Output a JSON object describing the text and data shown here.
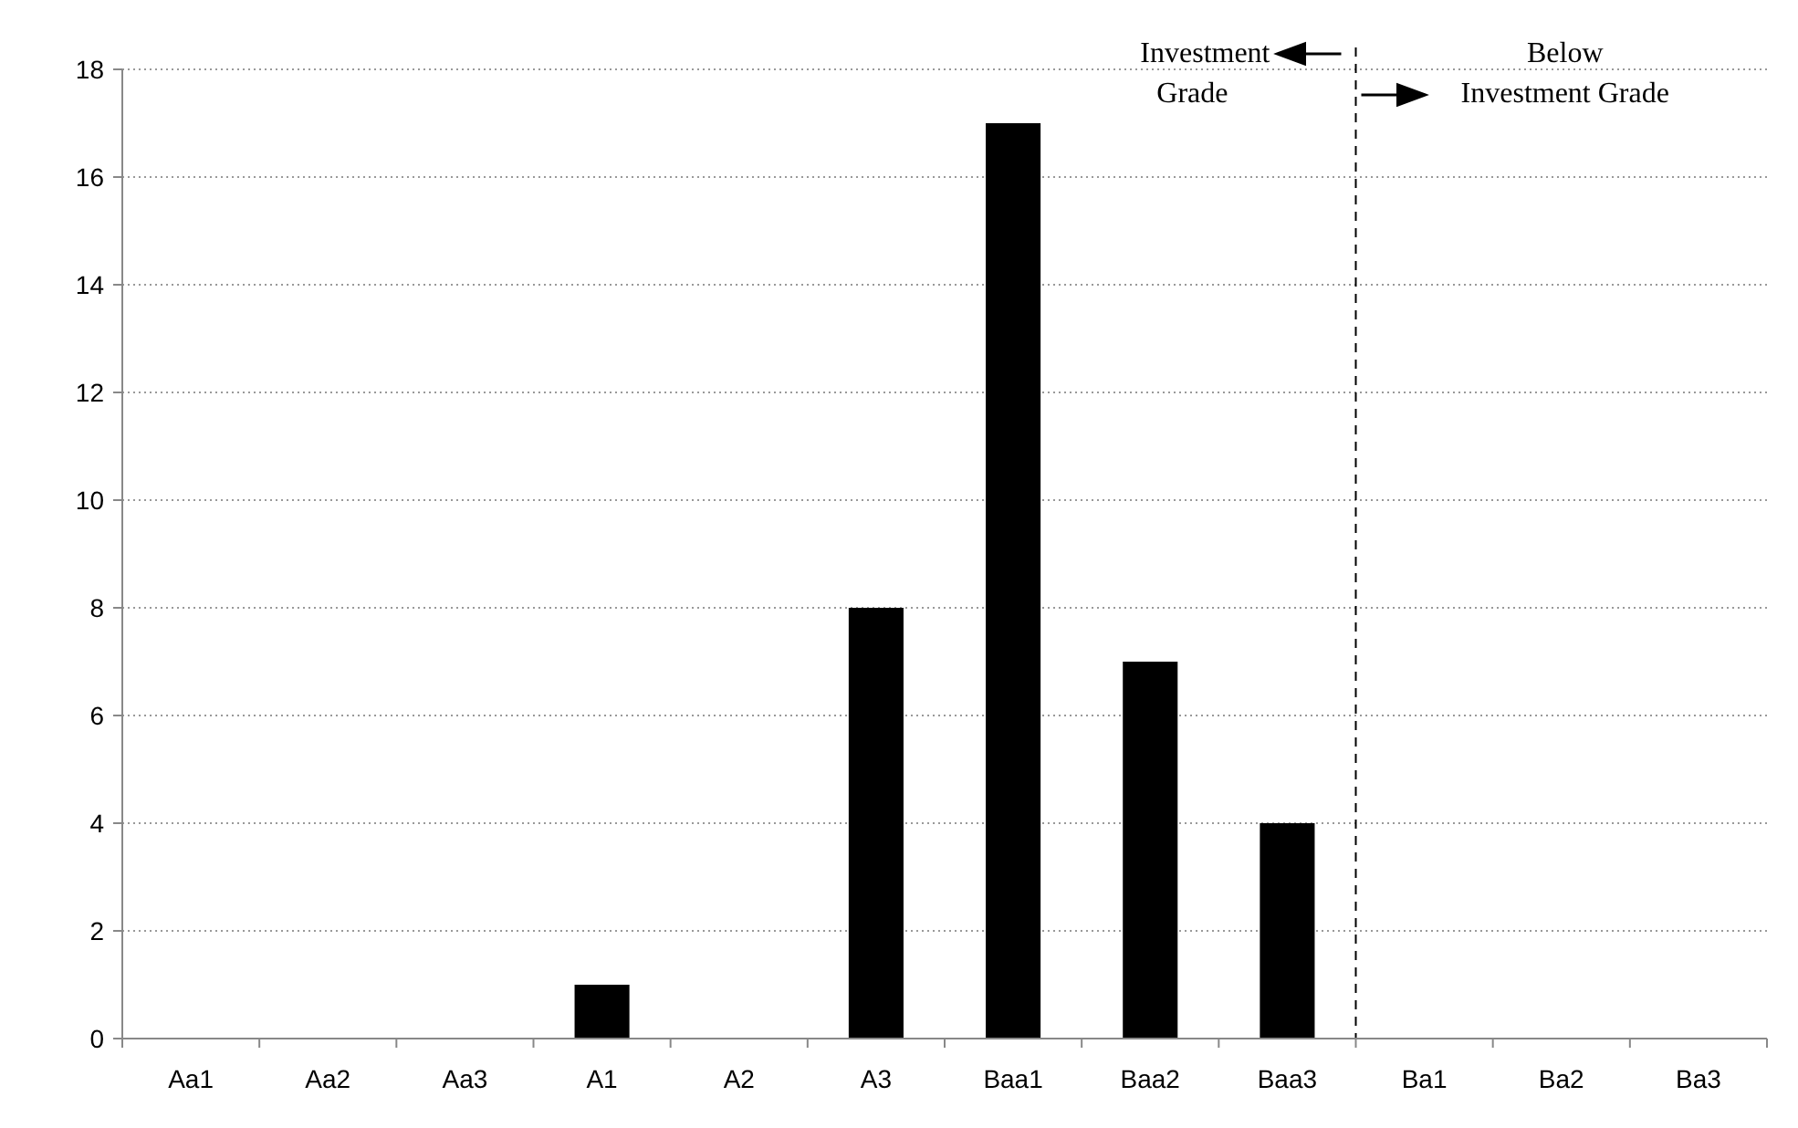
{
  "chart_data": {
    "type": "bar",
    "categories": [
      "Aa1",
      "Aa2",
      "Aa3",
      "A1",
      "A2",
      "A3",
      "Baa1",
      "Baa2",
      "Baa3",
      "Ba1",
      "Ba2",
      "Ba3"
    ],
    "values": [
      0,
      0,
      0,
      1,
      0,
      8,
      17,
      7,
      4,
      0,
      0,
      0
    ],
    "color": "#000000",
    "ylim": [
      0,
      18
    ],
    "yticks": [
      0,
      2,
      4,
      6,
      8,
      10,
      12,
      14,
      16,
      18
    ],
    "grid": "y",
    "ref_lines": [
      {
        "axis": "x",
        "value": "Ba1",
        "line_style": "dashed",
        "color": "#000000"
      }
    ],
    "annotations": [
      "Investment Grade",
      "Below Investment Grade"
    ]
  }
}
